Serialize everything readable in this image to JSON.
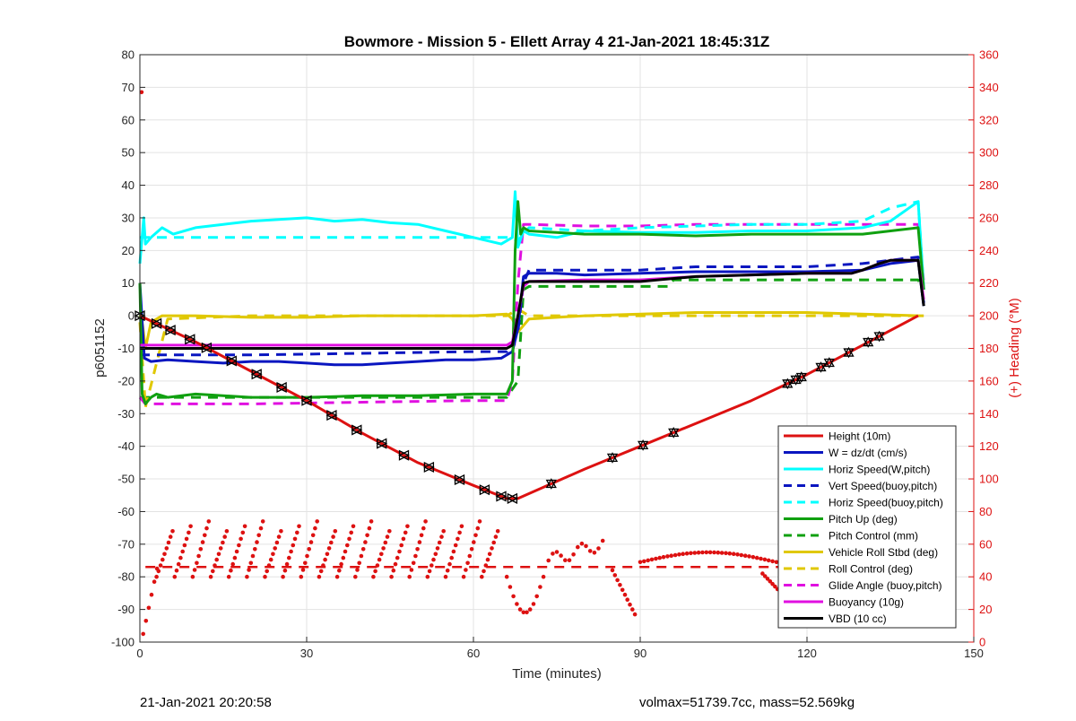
{
  "chart_data": {
    "type": "line",
    "title": "Bowmore - Mission 5 - Ellett Array 4 21-Jan-2021 18:45:31Z",
    "xlabel": "Time (minutes)",
    "ylabel_left": "p6051152",
    "ylabel_right": "(+) Heading (°M)",
    "xlim": [
      0,
      150
    ],
    "ylim_left": [
      -100,
      80
    ],
    "ylim_right": [
      0,
      360
    ],
    "x_ticks": [
      "0",
      "30",
      "60",
      "90",
      "120",
      "150"
    ],
    "y_ticks_left": [
      "80",
      "70",
      "60",
      "50",
      "40",
      "30",
      "20",
      "10",
      "0",
      "-10",
      "-20",
      "-30",
      "-40",
      "-50",
      "-60",
      "-70",
      "-80",
      "-90",
      "-100"
    ],
    "y_ticks_right": [
      "360",
      "340",
      "320",
      "300",
      "280",
      "260",
      "240",
      "220",
      "200",
      "180",
      "160",
      "140",
      "120",
      "100",
      "80",
      "60",
      "40",
      "20",
      "0"
    ],
    "grid": true,
    "legend_position": "bottom-right",
    "colors": {
      "height": "#dd1111",
      "w": "#0a16c0",
      "horiz": "#00ffff",
      "pitch": "#10a010",
      "roll": "#e0c800",
      "glide": "#e010e0",
      "buoyancy": "#e010e0",
      "vbd": "#000000",
      "right_axis": "#dd1111"
    },
    "series": [
      {
        "name": "Height (10m)",
        "color": "#dd1111",
        "style": "solid",
        "x": [
          0,
          10,
          20,
          30,
          40,
          50,
          60,
          66,
          68,
          80,
          90,
          100,
          110,
          120,
          130,
          140
        ],
        "y": [
          0,
          -8,
          -17,
          -26,
          -36,
          -45,
          -52,
          -56,
          -56,
          -47,
          -40,
          -33,
          -26,
          -18,
          -9,
          0
        ]
      },
      {
        "name": "W = dz/dt (cm/s)",
        "color": "#0a16c0",
        "style": "solid",
        "x": [
          0,
          0.8,
          2,
          5,
          10,
          15,
          20,
          25,
          30,
          35,
          40,
          45,
          50,
          55,
          60,
          65,
          67,
          68,
          69,
          70,
          75,
          80,
          90,
          100,
          110,
          120,
          130,
          135,
          140,
          141
        ],
        "y": [
          10,
          -13,
          -14,
          -13.5,
          -14,
          -14.5,
          -14,
          -14,
          -14.5,
          -15,
          -15,
          -14.5,
          -14,
          -13.5,
          -13.5,
          -13,
          -11,
          -4,
          12,
          13,
          13,
          12.5,
          13,
          13.5,
          13.5,
          13.5,
          14,
          16,
          17,
          3
        ]
      },
      {
        "name": "Horiz Speed(W,pitch)",
        "color": "#00ffff",
        "style": "solid",
        "x": [
          0,
          0.7,
          1,
          2,
          4,
          6,
          10,
          15,
          20,
          25,
          30,
          35,
          40,
          45,
          50,
          55,
          60,
          65,
          67,
          67.5,
          68,
          69,
          70,
          75,
          80,
          90,
          100,
          110,
          120,
          130,
          135,
          140,
          141
        ],
        "y": [
          16,
          30,
          22,
          24,
          27,
          25,
          27,
          28,
          29,
          29.5,
          30,
          29,
          29.5,
          28.5,
          28,
          26,
          24,
          22,
          24,
          38,
          21,
          26,
          25,
          24,
          26,
          25.5,
          25.5,
          26,
          26,
          27,
          29,
          35,
          8
        ]
      },
      {
        "name": "Vert Speed(buoy,pitch)",
        "color": "#0a16c0",
        "style": "dashed",
        "x": [
          0,
          1,
          5,
          20,
          40,
          60,
          66,
          68,
          69,
          70,
          80,
          90,
          100,
          110,
          120,
          130,
          140,
          141
        ],
        "y": [
          -12,
          -12,
          -12,
          -12,
          -11.5,
          -11,
          -11,
          -5,
          10,
          14,
          14,
          14,
          15,
          15,
          15,
          16,
          18,
          4
        ]
      },
      {
        "name": "Horiz Speed(buoy,pitch)",
        "color": "#00ffff",
        "style": "dashed",
        "x": [
          0,
          1,
          60,
          66,
          68,
          69,
          70,
          80,
          90,
          100,
          110,
          120,
          130,
          135,
          140,
          141
        ],
        "y": [
          24,
          24,
          24,
          24,
          23,
          25,
          27,
          26,
          27,
          27.5,
          28,
          28,
          29,
          33,
          35,
          8
        ]
      },
      {
        "name": "Pitch Up (deg)",
        "color": "#10a010",
        "style": "solid",
        "x": [
          0,
          0.4,
          1,
          1.5,
          2,
          3,
          5,
          10,
          20,
          30,
          40,
          50,
          60,
          66,
          67,
          67.5,
          68,
          68.5,
          69,
          70,
          80,
          90,
          100,
          110,
          120,
          130,
          140,
          141
        ],
        "y": [
          10,
          -24,
          -27,
          -26,
          -25,
          -24,
          -25,
          -24,
          -25,
          -25,
          -24.5,
          -24.5,
          -24,
          -24,
          -20,
          20,
          35,
          25,
          27,
          26,
          25,
          25,
          24.5,
          25,
          25,
          25,
          27,
          8
        ]
      },
      {
        "name": "Pitch Control (mm)",
        "color": "#10a010",
        "style": "dashed",
        "x": [
          0,
          1,
          66,
          68,
          69,
          70,
          95,
          96,
          140,
          141
        ],
        "y": [
          -25,
          -25,
          -25,
          -20,
          8,
          9,
          9,
          11,
          11,
          8
        ]
      },
      {
        "name": "Vehicle Roll Stbd (deg)",
        "color": "#e0c800",
        "style": "solid",
        "x": [
          0,
          0.5,
          1,
          2,
          4,
          10,
          20,
          30,
          40,
          50,
          60,
          66,
          67,
          68,
          70,
          80,
          90,
          100,
          110,
          120,
          130,
          140,
          141
        ],
        "y": [
          0,
          -3,
          -10,
          -2,
          0,
          0,
          -0.5,
          -0.5,
          0,
          0,
          0,
          0.5,
          -1,
          -5,
          -1,
          0,
          0.5,
          1,
          1,
          1,
          0.5,
          0,
          0
        ]
      },
      {
        "name": "Roll Control (deg)",
        "color": "#e0c800",
        "style": "dashed",
        "x": [
          0,
          1,
          5,
          20,
          40,
          60,
          66,
          68,
          70,
          80,
          100,
          120,
          140
        ],
        "y": [
          -2,
          -28,
          -1,
          0,
          0,
          0,
          0,
          2,
          0,
          0,
          0,
          0,
          0
        ]
      },
      {
        "name": "Glide Angle (buoy,pitch)",
        "color": "#e010e0",
        "style": "dashed",
        "x": [
          0,
          1,
          5,
          10,
          20,
          40,
          60,
          66,
          67,
          68,
          69,
          70,
          80,
          90,
          100,
          110,
          120,
          130,
          140,
          141
        ],
        "y": [
          -25,
          -27,
          -27,
          -27,
          -27,
          -26.5,
          -26,
          -26,
          -20,
          10,
          28,
          28,
          27.5,
          27.5,
          28,
          28,
          28,
          28,
          28,
          10
        ]
      },
      {
        "name": "Buoyancy (10g)",
        "color": "#e010e0",
        "style": "solid",
        "x": [
          0,
          60,
          66,
          67,
          68,
          69,
          70,
          80,
          90,
          100,
          110,
          120,
          128,
          130,
          133,
          135,
          140,
          141
        ],
        "y": [
          -9,
          -9,
          -9,
          -8,
          0,
          9,
          10.5,
          11,
          11,
          12,
          12.5,
          13,
          13,
          14,
          16,
          17,
          17,
          5
        ]
      },
      {
        "name": "VBD (10 cc)",
        "color": "#000000",
        "style": "solid",
        "x": [
          0,
          60,
          66,
          67,
          68,
          69,
          70,
          80,
          90,
          100,
          110,
          120,
          128,
          130,
          133,
          135,
          140,
          141
        ],
        "y": [
          -10,
          -10,
          -10,
          -9,
          0,
          10,
          10.5,
          10.5,
          10.5,
          12,
          12.5,
          13,
          13,
          14,
          16,
          17,
          17,
          3
        ]
      }
    ],
    "heading_series": {
      "name": "(+) Heading (°M)",
      "axis": "right",
      "color": "#dd1111",
      "mean": 46
    },
    "markers": {
      "down_x": [
        0,
        3,
        5.5,
        9,
        12,
        16.5,
        21,
        25.5,
        30,
        34.5,
        39,
        43.5,
        47.5,
        52,
        57.5,
        62,
        65,
        67
      ],
      "up_x": [
        74,
        85,
        90.5,
        96,
        116.5,
        118,
        119,
        122.5,
        124,
        127.5,
        131,
        133
      ]
    }
  },
  "footer": {
    "left": "21-Jan-2021 20:20:58",
    "right": "volmax=51739.7cc, mass=52.569kg"
  }
}
